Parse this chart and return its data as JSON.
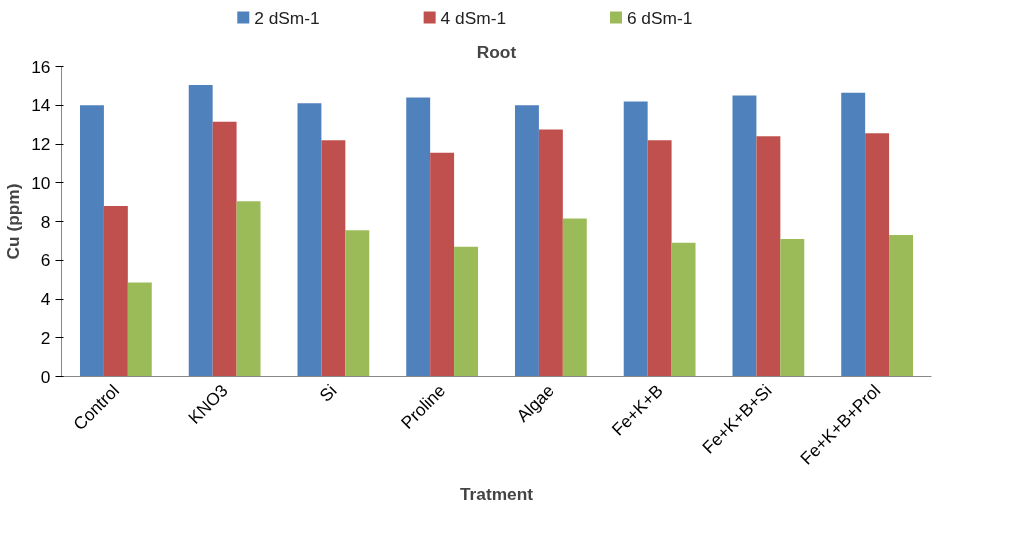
{
  "chart_data": {
    "type": "bar",
    "title": "Root",
    "xlabel": "Tratment",
    "ylabel": "Cu (ppm)",
    "categories": [
      "Control",
      "KNO3",
      "Si",
      "Proline",
      "Algae",
      "Fe+K+B",
      "Fe+K+B+Si",
      "Fe+K+B+Prol"
    ],
    "series": [
      {
        "name": "2 dSm-1",
        "color": "#4f81bd",
        "values": [
          14.0,
          15.05,
          14.1,
          14.4,
          14.0,
          14.2,
          14.5,
          14.65
        ]
      },
      {
        "name": "4 dSm-1",
        "color": "#c0504d",
        "values": [
          8.8,
          13.15,
          12.2,
          11.55,
          12.75,
          12.2,
          12.4,
          12.55
        ]
      },
      {
        "name": "6 dSm-1",
        "color": "#9bbb59",
        "values": [
          4.85,
          9.05,
          7.55,
          6.7,
          8.15,
          6.9,
          7.1,
          7.3
        ]
      }
    ],
    "ylim": [
      0,
      16
    ],
    "yticks": [
      0,
      2,
      4,
      6,
      8,
      10,
      12,
      14,
      16
    ],
    "grid": false,
    "legend": "top"
  }
}
